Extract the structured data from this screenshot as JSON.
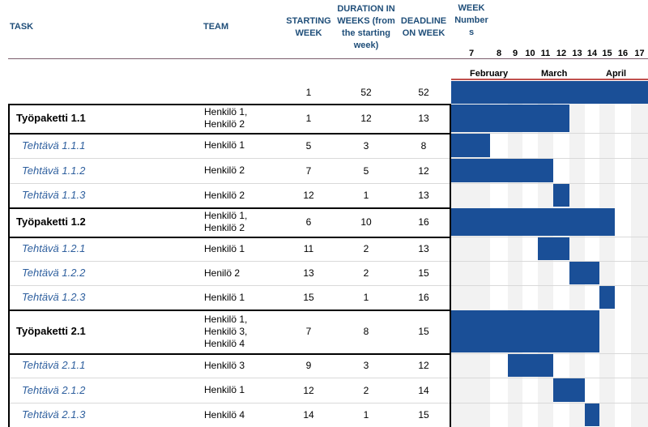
{
  "headers": {
    "task": "TASK",
    "team": "TEAM",
    "start": [
      "STARTING",
      "WEEK"
    ],
    "duration": [
      "DURATION IN",
      "WEEKS (from",
      "the starting",
      "week)"
    ],
    "deadline": [
      "DEADLINE",
      "ON WEEK"
    ],
    "week_numbers": [
      "WEEK",
      "Number",
      "s"
    ]
  },
  "weeks": [
    "7",
    "8",
    "9",
    "10",
    "11",
    "12",
    "13",
    "14",
    "15",
    "16",
    "17"
  ],
  "months": [
    "February",
    "March",
    "April"
  ],
  "summary": {
    "start": "1",
    "duration": "52",
    "deadline": "52"
  },
  "rows": [
    {
      "type": "package",
      "task": "Työpaketti 1.1",
      "team": [
        "Henkilö 1,",
        "Henkilö 2"
      ],
      "start": "1",
      "duration": "12",
      "deadline": "13"
    },
    {
      "type": "task",
      "task": "Tehtävä 1.1.1",
      "team": [
        "Henkilö 1"
      ],
      "start": "5",
      "duration": "3",
      "deadline": "8"
    },
    {
      "type": "task",
      "task": "Tehtävä 1.1.2",
      "team": [
        "Henkilö 2"
      ],
      "start": "7",
      "duration": "5",
      "deadline": "12"
    },
    {
      "type": "task",
      "task": "Tehtävä 1.1.3",
      "team": [
        "Henkilö 2"
      ],
      "start": "12",
      "duration": "1",
      "deadline": "13"
    },
    {
      "type": "package",
      "task": "Työpaketti 1.2",
      "team": [
        "Henkilö 1,",
        "Henkilö 2"
      ],
      "start": "6",
      "duration": "10",
      "deadline": "16"
    },
    {
      "type": "task",
      "task": "Tehtävä 1.2.1",
      "team": [
        "Henkilö 1"
      ],
      "start": "11",
      "duration": "2",
      "deadline": "13"
    },
    {
      "type": "task",
      "task": "Tehtävä 1.2.2",
      "team": [
        "Henilö 2"
      ],
      "start": "13",
      "duration": "2",
      "deadline": "15"
    },
    {
      "type": "task",
      "task": "Tehtävä 1.2.3",
      "team": [
        "Henkilö 1"
      ],
      "start": "15",
      "duration": "1",
      "deadline": "16"
    },
    {
      "type": "package",
      "task": "Työpaketti 2.1",
      "team": [
        "Henkilö 1,",
        "Henkilö 3,",
        "Henkilö 4"
      ],
      "start": "7",
      "duration": "8",
      "deadline": "15"
    },
    {
      "type": "task",
      "task": "Tehtävä 2.1.1",
      "team": [
        "Henkilö 3"
      ],
      "start": "9",
      "duration": "3",
      "deadline": "12"
    },
    {
      "type": "task",
      "task": "Tehtävä 2.1.2",
      "team": [
        "Henkilö 1"
      ],
      "start": "12",
      "duration": "2",
      "deadline": "14"
    },
    {
      "type": "task",
      "task": "Tehtävä 2.1.3",
      "team": [
        "Henkilö 4"
      ],
      "start": "14",
      "duration": "1",
      "deadline": "15"
    }
  ],
  "colors": {
    "bar": "#1a4f97",
    "header": "#1f4e79",
    "task": "#2e5f9e",
    "accent_line": "#c0504d"
  }
}
